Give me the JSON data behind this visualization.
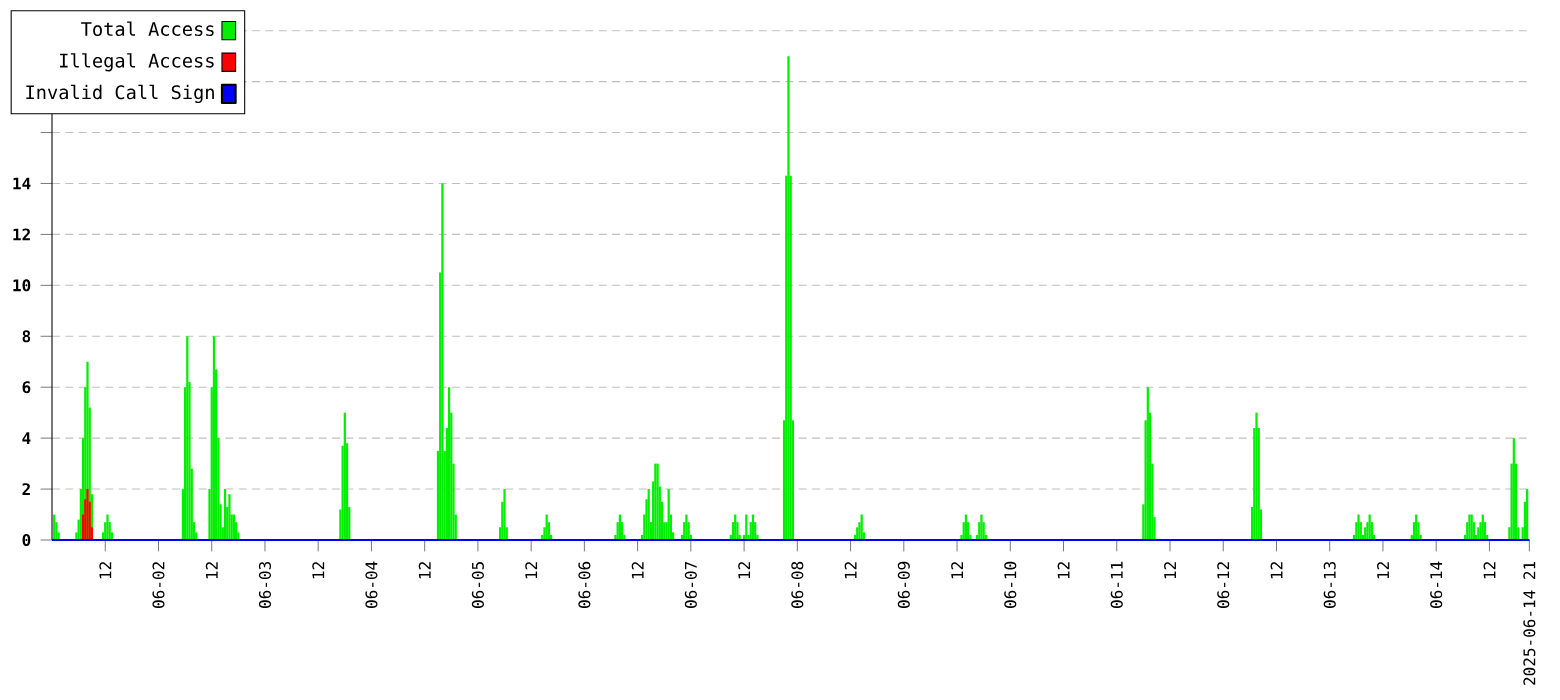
{
  "chart_data": {
    "type": "bar",
    "xlim": [
      "2025-06-01T00:00",
      "2025-06-14T21:00"
    ],
    "ylim": [
      0,
      20
    ],
    "xticks": [
      {
        "value": "2025-06-01T12:00",
        "label": "12"
      },
      {
        "value": "2025-06-02T00:00",
        "label": "06-02"
      },
      {
        "value": "2025-06-02T12:00",
        "label": "12"
      },
      {
        "value": "2025-06-03T00:00",
        "label": "06-03"
      },
      {
        "value": "2025-06-03T12:00",
        "label": "12"
      },
      {
        "value": "2025-06-04T00:00",
        "label": "06-04"
      },
      {
        "value": "2025-06-04T12:00",
        "label": "12"
      },
      {
        "value": "2025-06-05T00:00",
        "label": "06-05"
      },
      {
        "value": "2025-06-05T12:00",
        "label": "12"
      },
      {
        "value": "2025-06-06T00:00",
        "label": "06-06"
      },
      {
        "value": "2025-06-06T12:00",
        "label": "12"
      },
      {
        "value": "2025-06-07T00:00",
        "label": "06-07"
      },
      {
        "value": "2025-06-07T12:00",
        "label": "12"
      },
      {
        "value": "2025-06-08T00:00",
        "label": "06-08"
      },
      {
        "value": "2025-06-08T12:00",
        "label": "12"
      },
      {
        "value": "2025-06-09T00:00",
        "label": "06-09"
      },
      {
        "value": "2025-06-09T12:00",
        "label": "12"
      },
      {
        "value": "2025-06-10T00:00",
        "label": "06-10"
      },
      {
        "value": "2025-06-10T12:00",
        "label": "12"
      },
      {
        "value": "2025-06-11T00:00",
        "label": "06-11"
      },
      {
        "value": "2025-06-11T12:00",
        "label": "12"
      },
      {
        "value": "2025-06-12T00:00",
        "label": "06-12"
      },
      {
        "value": "2025-06-12T12:00",
        "label": "12"
      },
      {
        "value": "2025-06-13T00:00",
        "label": "06-13"
      },
      {
        "value": "2025-06-13T12:00",
        "label": "12"
      },
      {
        "value": "2025-06-14T00:00",
        "label": "06-14"
      },
      {
        "value": "2025-06-14T12:00",
        "label": "12"
      },
      {
        "value": "2025-06-14T21:00",
        "label": "2025-06-14 21"
      }
    ],
    "yticks": [
      0,
      2,
      4,
      6,
      8,
      10,
      12,
      14,
      {
        "value": 16,
        "label": null
      },
      {
        "value": 18,
        "label": null
      },
      {
        "value": 20,
        "label": null
      }
    ],
    "grid": "y",
    "legend": "top left",
    "series": [
      {
        "name": "Total Access",
        "color": "#00ee00",
        "x": [
          "2025-06-01T00:30",
          "2025-06-01T01:00",
          "2025-06-01T01:30",
          "2025-06-01T05:30",
          "2025-06-01T06:00",
          "2025-06-01T06:30",
          "2025-06-01T07:00",
          "2025-06-01T07:30",
          "2025-06-01T08:00",
          "2025-06-01T08:30",
          "2025-06-01T09:00",
          "2025-06-01T11:30",
          "2025-06-01T12:00",
          "2025-06-01T12:30",
          "2025-06-01T13:00",
          "2025-06-01T13:30",
          "2025-06-02T05:30",
          "2025-06-02T06:00",
          "2025-06-02T06:30",
          "2025-06-02T07:00",
          "2025-06-02T07:30",
          "2025-06-02T08:00",
          "2025-06-02T08:30",
          "2025-06-02T11:30",
          "2025-06-02T12:00",
          "2025-06-02T12:30",
          "2025-06-02T13:00",
          "2025-06-02T13:30",
          "2025-06-02T14:00",
          "2025-06-02T14:30",
          "2025-06-02T15:00",
          "2025-06-02T15:30",
          "2025-06-02T16:00",
          "2025-06-02T16:30",
          "2025-06-02T17:00",
          "2025-06-02T17:30",
          "2025-06-02T18:00",
          "2025-06-03T17:00",
          "2025-06-03T17:30",
          "2025-06-03T18:00",
          "2025-06-03T18:30",
          "2025-06-03T19:00",
          "2025-06-04T15:00",
          "2025-06-04T15:30",
          "2025-06-04T16:00",
          "2025-06-04T16:30",
          "2025-06-04T17:00",
          "2025-06-04T17:30",
          "2025-06-04T18:00",
          "2025-06-04T18:30",
          "2025-06-04T19:00",
          "2025-06-05T05:00",
          "2025-06-05T05:30",
          "2025-06-05T06:00",
          "2025-06-05T06:30",
          "2025-06-05T14:30",
          "2025-06-05T15:00",
          "2025-06-05T15:30",
          "2025-06-05T16:00",
          "2025-06-05T16:30",
          "2025-06-06T07:00",
          "2025-06-06T07:30",
          "2025-06-06T08:00",
          "2025-06-06T08:30",
          "2025-06-06T09:00",
          "2025-06-06T13:00",
          "2025-06-06T13:30",
          "2025-06-06T14:00",
          "2025-06-06T14:30",
          "2025-06-06T15:00",
          "2025-06-06T15:30",
          "2025-06-06T16:00",
          "2025-06-06T16:30",
          "2025-06-06T17:00",
          "2025-06-06T17:30",
          "2025-06-06T18:00",
          "2025-06-06T18:30",
          "2025-06-06T19:00",
          "2025-06-06T19:30",
          "2025-06-06T20:00",
          "2025-06-06T22:00",
          "2025-06-06T22:30",
          "2025-06-06T23:00",
          "2025-06-06T23:30",
          "2025-06-07T00:00",
          "2025-06-07T09:00",
          "2025-06-07T09:30",
          "2025-06-07T10:00",
          "2025-06-07T10:30",
          "2025-06-07T11:00",
          "2025-06-07T12:00",
          "2025-06-07T12:30",
          "2025-06-07T13:00",
          "2025-06-07T13:30",
          "2025-06-07T14:00",
          "2025-06-07T14:30",
          "2025-06-07T15:00",
          "2025-06-07T21:00",
          "2025-06-07T21:30",
          "2025-06-07T22:00",
          "2025-06-07T22:30",
          "2025-06-07T23:00",
          "2025-06-08T13:00",
          "2025-06-08T13:30",
          "2025-06-08T14:00",
          "2025-06-08T14:30",
          "2025-06-08T15:00",
          "2025-06-09T13:00",
          "2025-06-09T13:30",
          "2025-06-09T14:00",
          "2025-06-09T14:30",
          "2025-06-09T15:00",
          "2025-06-09T16:30",
          "2025-06-09T17:00",
          "2025-06-09T17:30",
          "2025-06-09T18:00",
          "2025-06-09T18:30",
          "2025-06-11T06:00",
          "2025-06-11T06:30",
          "2025-06-11T07:00",
          "2025-06-11T07:30",
          "2025-06-11T08:00",
          "2025-06-11T08:30",
          "2025-06-12T06:30",
          "2025-06-12T07:00",
          "2025-06-12T07:30",
          "2025-06-12T08:00",
          "2025-06-12T08:30",
          "2025-06-13T05:30",
          "2025-06-13T06:00",
          "2025-06-13T06:30",
          "2025-06-13T07:00",
          "2025-06-13T07:30",
          "2025-06-13T08:00",
          "2025-06-13T08:30",
          "2025-06-13T09:00",
          "2025-06-13T09:30",
          "2025-06-13T10:00",
          "2025-06-13T18:30",
          "2025-06-13T19:00",
          "2025-06-13T19:30",
          "2025-06-13T20:00",
          "2025-06-13T20:30",
          "2025-06-14T06:30",
          "2025-06-14T07:00",
          "2025-06-14T07:30",
          "2025-06-14T08:00",
          "2025-06-14T08:30",
          "2025-06-14T09:00",
          "2025-06-14T09:30",
          "2025-06-14T10:00",
          "2025-06-14T10:30",
          "2025-06-14T11:00",
          "2025-06-14T11:30",
          "2025-06-14T16:30",
          "2025-06-14T17:00",
          "2025-06-14T17:30",
          "2025-06-14T18:00",
          "2025-06-14T18:30",
          "2025-06-14T19:30",
          "2025-06-14T20:00",
          "2025-06-14T20:30"
        ],
        "values": [
          1,
          0.7,
          0.3,
          0.3,
          0.8,
          2,
          4,
          6,
          7,
          5.2,
          1.8,
          0.3,
          0.7,
          1,
          0.7,
          0.3,
          2,
          6,
          8,
          6.2,
          2.8,
          0.7,
          0.3,
          2,
          6,
          8,
          6.7,
          4,
          1.4,
          0.5,
          2,
          1.3,
          1.8,
          1,
          1,
          0.7,
          0.3,
          1.2,
          3.7,
          5,
          3.8,
          1.3,
          3.5,
          10.5,
          14,
          3.5,
          4.4,
          6,
          5,
          3,
          1,
          0.5,
          1.5,
          2,
          0.5,
          0.2,
          0.5,
          1,
          0.7,
          0.2,
          0.2,
          0.7,
          1,
          0.7,
          0.2,
          0.2,
          1,
          1.6,
          2,
          0.7,
          2.3,
          3,
          3,
          2.1,
          1.5,
          0.7,
          0.7,
          2,
          1,
          0.3,
          0.2,
          0.7,
          1,
          0.7,
          0.2,
          0.2,
          0.7,
          1,
          0.7,
          0.2,
          0.2,
          1,
          0.2,
          0.7,
          1,
          0.7,
          0.2,
          4.7,
          14.3,
          19,
          14.3,
          4.7,
          0.2,
          0.5,
          0.7,
          1,
          0.3,
          0.2,
          0.7,
          1,
          0.7,
          0.2,
          0.2,
          0.7,
          1,
          0.7,
          0.2,
          1.4,
          4.7,
          6,
          5,
          3,
          0.9,
          1.3,
          4.4,
          5,
          4.4,
          1.2,
          0.2,
          0.7,
          1,
          0.7,
          0.2,
          0.5,
          0.7,
          1,
          0.7,
          0.2,
          0.2,
          0.7,
          1,
          0.7,
          0.2,
          0.2,
          0.7,
          1,
          1,
          0.7,
          0.2,
          0.5,
          0.7,
          1,
          0.7,
          0.2,
          0.5,
          3,
          4,
          3,
          0.5,
          0.5,
          1.5,
          2
        ]
      },
      {
        "name": "Illegal Access",
        "color": "#ff0000",
        "x": [
          "2025-06-01T07:00",
          "2025-06-01T07:30",
          "2025-06-01T08:00",
          "2025-06-01T08:30",
          "2025-06-01T09:00"
        ],
        "values": [
          1,
          1.6,
          2,
          1.5,
          0.5
        ]
      },
      {
        "name": "Invalid Call Sign",
        "type": "line",
        "color": "#0000ff",
        "x": [
          "2025-06-01T00:00",
          "2025-06-14T21:00"
        ],
        "values": [
          0,
          0
        ]
      }
    ]
  }
}
